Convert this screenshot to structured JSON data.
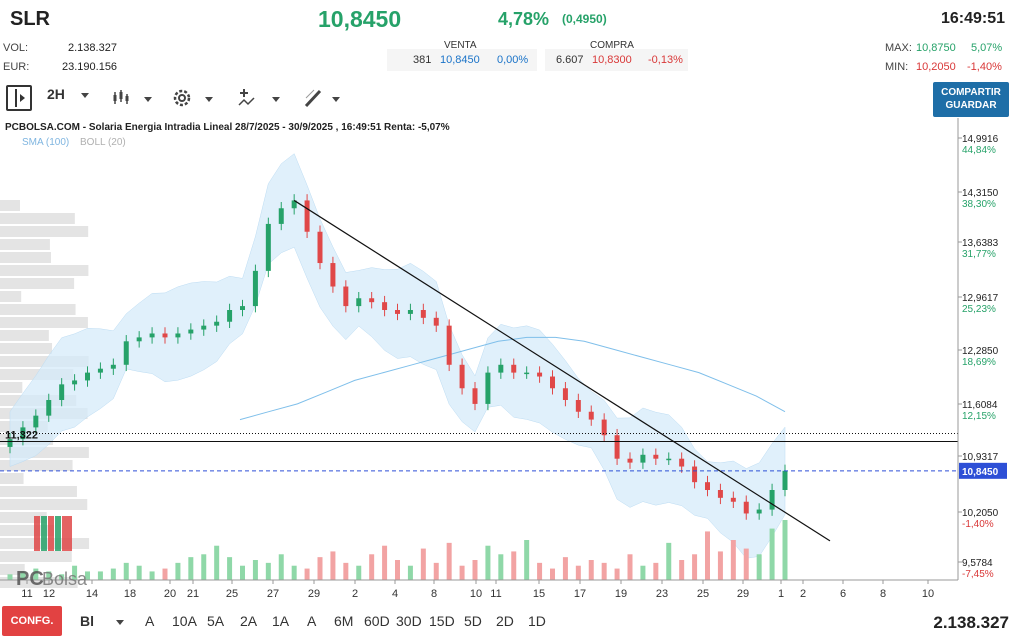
{
  "header": {
    "symbol": "SLR",
    "price": "10,8450",
    "change_pct": "4,78%",
    "change_abs": "(0,4950)",
    "time": "16:49:51"
  },
  "stats": {
    "vol_label": "VOL:",
    "vol_value": "2.138.327",
    "eur_label": "EUR:",
    "eur_value": "23.190.156"
  },
  "quotes": {
    "venta_label": "VENTA",
    "venta_qty": "381",
    "venta_price": "10,8450",
    "venta_pct": "0,00%",
    "compra_label": "COMPRA",
    "compra_qty": "6.607",
    "compra_price": "10,8300",
    "compra_pct": "-0,13%"
  },
  "range": {
    "max_label": "MAX:",
    "max_value": "10,8750",
    "max_pct": "5,07%",
    "min_label": "MIN:",
    "min_value": "10,2050",
    "min_pct": "-1,40%"
  },
  "toolbar": {
    "interval": "2H",
    "share_line1": "COMPARTIR",
    "share_line2": "GUARDAR"
  },
  "chart_title": "PCBOLSA.COM - Solaria Energia Intradia Lineal 28/7/2025 - 30/9/2025 , 16:49:51 Renta: -5,07%",
  "legend": {
    "sma": "SMA (100)",
    "boll": "BOLL (20)"
  },
  "watermark": {
    "a": "PC",
    "b": "Bolsa"
  },
  "bottom": {
    "config": "CONFG.",
    "chart_type": "Bl",
    "ranges": [
      "A",
      "10A",
      "5A",
      "2A",
      "1A",
      "A",
      "6M",
      "60D",
      "30D",
      "15D",
      "5D",
      "2D",
      "1D"
    ],
    "volume_total": "2.138.327"
  },
  "colors": {
    "up": "#26a269",
    "down": "#e04848",
    "sma": "#7fbfea",
    "band": "#d6ebfa",
    "price_line": "#2d4fd6"
  },
  "chart_data": {
    "type": "candlestick",
    "title": "PCBOLSA.COM - Solaria Energia Intradia Lineal 28/7/2025 - 30/9/2025 , 16:49:51 Renta: -5,07%",
    "y_axis_ticks": [
      {
        "value": "14,9916",
        "pct": "44,84%"
      },
      {
        "value": "14,3150",
        "pct": "38,30%"
      },
      {
        "value": "13,6383",
        "pct": "31,77%"
      },
      {
        "value": "12,9617",
        "pct": "25,23%"
      },
      {
        "value": "12,2850",
        "pct": "18,69%"
      },
      {
        "value": "11,6084",
        "pct": "12,15%"
      },
      {
        "value": "10,9317",
        "pct": ""
      },
      {
        "value": "10,2050",
        "pct": "-1,40%"
      },
      {
        "value": "9,5784",
        "pct": "-7,45%"
      }
    ],
    "x_axis_labels": [
      "11",
      "12",
      "14",
      "18",
      "20",
      "21",
      "25",
      "27",
      "29",
      "2",
      "4",
      "8",
      "10",
      "11",
      "15",
      "17",
      "19",
      "23",
      "25",
      "29",
      "1",
      "2",
      "6",
      "8",
      "10"
    ],
    "ylim": [
      9.45,
      15.2
    ],
    "current_price": {
      "value": 10.845,
      "label": "10,8450"
    },
    "reference_line": {
      "value": 11.322,
      "label": "11,322"
    },
    "series": [
      {
        "name": "Precio",
        "values": [
          11.25,
          11.4,
          11.55,
          11.75,
          11.95,
          12.0,
          12.1,
          12.15,
          12.2,
          12.5,
          12.55,
          12.6,
          12.55,
          12.6,
          12.65,
          12.7,
          12.75,
          12.9,
          12.95,
          13.4,
          14.0,
          14.2,
          14.3,
          13.9,
          13.5,
          13.2,
          12.95,
          13.05,
          13.0,
          12.9,
          12.85,
          12.9,
          12.8,
          12.7,
          12.2,
          11.9,
          11.7,
          12.1,
          12.2,
          12.1,
          12.1,
          12.05,
          11.9,
          11.75,
          11.6,
          11.5,
          11.3,
          11.0,
          10.95,
          11.05,
          11.0,
          11.0,
          10.9,
          10.7,
          10.6,
          10.5,
          10.45,
          10.3,
          10.35,
          10.6,
          10.845
        ]
      },
      {
        "name": "SMA (100)",
        "values": [
          11.5,
          11.6,
          11.7,
          11.85,
          12.0,
          12.1,
          12.2,
          12.3,
          12.4,
          12.5,
          12.55,
          12.55,
          12.5,
          12.4,
          12.3,
          12.2,
          12.1,
          11.95,
          11.8,
          11.6
        ]
      }
    ],
    "volume": [
      2,
      3,
      4,
      3,
      2,
      5,
      3,
      3,
      4,
      6,
      5,
      3,
      4,
      6,
      8,
      9,
      12,
      8,
      5,
      7,
      6,
      9,
      5,
      4,
      8,
      10,
      6,
      5,
      9,
      12,
      7,
      5,
      11,
      6,
      13,
      5,
      7,
      12,
      9,
      10,
      14,
      6,
      4,
      8,
      5,
      7,
      6,
      4,
      9,
      5,
      6,
      13,
      7,
      9,
      17,
      10,
      14,
      11,
      9,
      18,
      21
    ],
    "legend": [
      "SMA (100)",
      "BOLL (20)"
    ],
    "grid": false
  }
}
